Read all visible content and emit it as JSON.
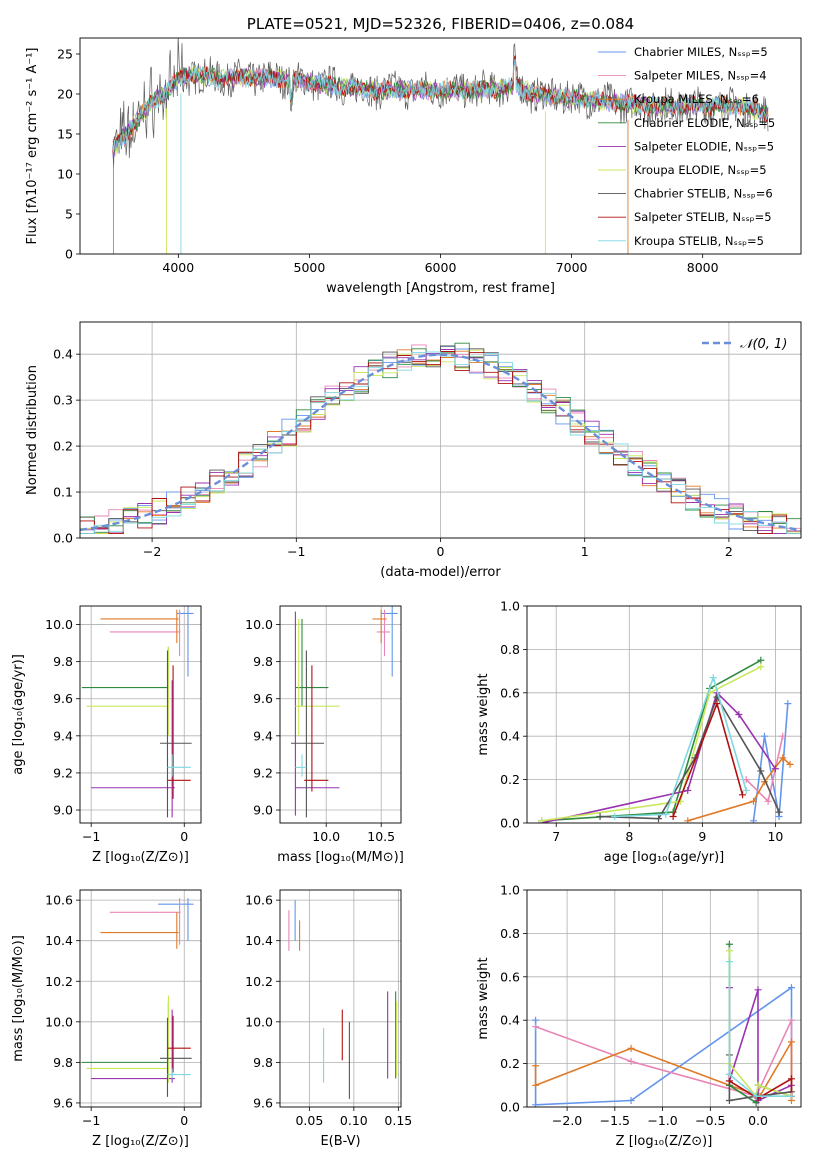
{
  "colors": {
    "chab_miles": "#6495ed",
    "salp_miles": "#e886b6",
    "krou_miles": "#e07b2a",
    "chab_elodie": "#2e8b3e",
    "salp_elodie": "#9933b0",
    "krou_elodie": "#c8e85a",
    "chab_stelib": "#555555",
    "salp_stelib": "#b01010",
    "krou_stelib": "#7fd8e0",
    "normal": "#6a8fd8",
    "grid": "#b0b0b0"
  },
  "chart_data": [
    {
      "id": "spectrum",
      "type": "line",
      "title": "PLATE=0521, MJD=52326, FIBERID=0406, z=0.084",
      "xlabel": "wavelength [Angstrom, rest frame]",
      "ylabel": "Flux [fλ10⁻¹⁷ erg cm⁻² s⁻¹ A⁻¹]",
      "xlim": [
        3250,
        8750
      ],
      "ylim": [
        0,
        27
      ],
      "xticks": [
        "4000",
        "5000",
        "6000",
        "7000",
        "8000"
      ],
      "yticks": [
        "0",
        "5",
        "10",
        "15",
        "20",
        "25"
      ],
      "legend_position": "top-right",
      "legend": [
        {
          "label": "Chabrier MILES, N_SSP=5",
          "color": "chab_miles"
        },
        {
          "label": "Salpeter MILES, N_SSP=4",
          "color": "salp_miles"
        },
        {
          "label": "Kroupa MILES, N_SSP=6",
          "color": "krou_miles"
        },
        {
          "label": "Chabrier ELODIE, N_SSP=5",
          "color": "chab_elodie"
        },
        {
          "label": "Salpeter ELODIE, N_SSP=5",
          "color": "salp_elodie"
        },
        {
          "label": "Kroupa ELODIE, N_SSP=5",
          "color": "krou_elodie"
        },
        {
          "label": "Chabrier STELIB, N_SSP=6",
          "color": "chab_stelib"
        },
        {
          "label": "Salpeter STELIB, N_SSP=5",
          "color": "salp_stelib"
        },
        {
          "label": "Kroupa STELIB, N_SSP=5",
          "color": "krou_stelib"
        }
      ],
      "continuum": [
        [
          3500,
          13
        ],
        [
          3600,
          15
        ],
        [
          3700,
          17
        ],
        [
          3800,
          19
        ],
        [
          3900,
          20
        ],
        [
          4000,
          22
        ],
        [
          4100,
          22.5
        ],
        [
          4300,
          22
        ],
        [
          4500,
          22
        ],
        [
          4700,
          22
        ],
        [
          5000,
          21.5
        ],
        [
          5200,
          21
        ],
        [
          5500,
          20.5
        ],
        [
          6000,
          20.5
        ],
        [
          6300,
          20.5
        ],
        [
          6600,
          21
        ],
        [
          6700,
          20
        ],
        [
          7000,
          19.5
        ],
        [
          7300,
          19
        ],
        [
          7600,
          18.5
        ],
        [
          8000,
          18.5
        ],
        [
          8300,
          18.5
        ],
        [
          8500,
          17.5
        ]
      ]
    },
    {
      "id": "residuals",
      "type": "line",
      "xlabel": "(data-model)/error",
      "ylabel": "Normed distribution",
      "xlim": [
        -2.5,
        2.5
      ],
      "ylim": [
        0,
        0.47
      ],
      "xticks": [
        "−2",
        "−1",
        "0",
        "1",
        "2"
      ],
      "yticks": [
        "0.0",
        "0.1",
        "0.2",
        "0.3",
        "0.4"
      ],
      "legend_position": "top-right",
      "legend": [
        {
          "label": "𝒩(0, 1)",
          "color": "normal"
        }
      ],
      "normal_mean": 0,
      "normal_sigma": 1
    },
    {
      "id": "age_vs_Z",
      "type": "scatter",
      "xlabel": "Z [log₁₀(Z/Z⊙)]",
      "ylabel": "age  [log₁₀(age/yr)]",
      "xlim": [
        -1.12,
        0.18
      ],
      "ylim": [
        8.93,
        10.1
      ],
      "xticks": [
        "−1",
        "0"
      ],
      "yticks": [
        "9.0",
        "9.2",
        "9.4",
        "9.6",
        "9.8",
        "10.0"
      ],
      "points": [
        {
          "x": 0.04,
          "y": 10.06,
          "xlo": -0.08,
          "xhi": 0.1,
          "ylo": 9.72,
          "yhi": 10.1,
          "c": "chab_miles"
        },
        {
          "x": -0.05,
          "y": 9.96,
          "xlo": -0.8,
          "xhi": -0.04,
          "ylo": 9.83,
          "yhi": 10.08,
          "c": "salp_miles"
        },
        {
          "x": -0.08,
          "y": 10.03,
          "xlo": -0.9,
          "xhi": -0.06,
          "ylo": 9.9,
          "yhi": 10.08,
          "c": "krou_miles"
        },
        {
          "x": -0.17,
          "y": 9.66,
          "xlo": -1.1,
          "xhi": -0.17,
          "ylo": 9.56,
          "yhi": 9.88,
          "c": "chab_elodie"
        },
        {
          "x": -0.13,
          "y": 9.12,
          "xlo": -1.0,
          "xhi": -0.1,
          "ylo": 8.96,
          "yhi": 9.7,
          "c": "salp_elodie"
        },
        {
          "x": -0.17,
          "y": 9.56,
          "xlo": -1.05,
          "xhi": -0.17,
          "ylo": 9.4,
          "yhi": 9.88,
          "c": "krou_elodie"
        },
        {
          "x": -0.18,
          "y": 9.36,
          "xlo": -0.26,
          "xhi": 0.08,
          "ylo": 8.96,
          "yhi": 9.86,
          "c": "chab_stelib"
        },
        {
          "x": -0.12,
          "y": 9.16,
          "xlo": -0.18,
          "xhi": 0.07,
          "ylo": 9.06,
          "yhi": 9.78,
          "c": "salp_stelib"
        },
        {
          "x": -0.13,
          "y": 9.23,
          "xlo": -0.18,
          "xhi": 0.07,
          "ylo": 9.18,
          "yhi": 9.3,
          "c": "krou_stelib"
        }
      ]
    },
    {
      "id": "age_vs_mass",
      "type": "scatter",
      "xlabel": "mass [log₁₀(M/M⊙)]",
      "ylabel": "",
      "xlim": [
        9.58,
        10.68
      ],
      "ylim": [
        8.93,
        10.1
      ],
      "xticks": [
        "10.0",
        "10.5"
      ],
      "yticks": [
        "9.0",
        "9.2",
        "9.4",
        "9.6",
        "9.8",
        "10.0"
      ],
      "points": [
        {
          "x": 10.6,
          "y": 10.06,
          "xlo": 10.5,
          "xhi": 10.65,
          "ylo": 9.72,
          "yhi": 10.1,
          "c": "chab_miles"
        },
        {
          "x": 10.53,
          "y": 9.96,
          "xlo": 10.46,
          "xhi": 10.58,
          "ylo": 9.83,
          "yhi": 10.08,
          "c": "salp_miles"
        },
        {
          "x": 10.5,
          "y": 10.03,
          "xlo": 10.42,
          "xhi": 10.55,
          "ylo": 9.9,
          "yhi": 10.08,
          "c": "krou_miles"
        },
        {
          "x": 9.78,
          "y": 9.66,
          "xlo": 9.72,
          "xhi": 10.02,
          "ylo": 9.56,
          "yhi": 10.03,
          "c": "chab_elodie"
        },
        {
          "x": 9.72,
          "y": 9.12,
          "xlo": 9.72,
          "xhi": 10.12,
          "ylo": 8.97,
          "yhi": 10.07,
          "c": "salp_elodie"
        },
        {
          "x": 9.75,
          "y": 9.56,
          "xlo": 9.72,
          "xhi": 10.12,
          "ylo": 9.4,
          "yhi": 10.03,
          "c": "krou_elodie"
        },
        {
          "x": 9.82,
          "y": 9.36,
          "xlo": 9.68,
          "xhi": 9.98,
          "ylo": 8.96,
          "yhi": 9.86,
          "c": "chab_stelib"
        },
        {
          "x": 9.87,
          "y": 9.16,
          "xlo": 9.8,
          "xhi": 10.02,
          "ylo": 9.1,
          "yhi": 9.78,
          "c": "salp_stelib"
        },
        {
          "x": 9.78,
          "y": 9.23,
          "xlo": 9.72,
          "xhi": 9.82,
          "ylo": 9.18,
          "yhi": 9.3,
          "c": "krou_stelib"
        }
      ]
    },
    {
      "id": "weight_vs_age",
      "type": "line",
      "xlabel": "age  [log₁₀(age/yr)]",
      "ylabel": "mass weight",
      "xlim": [
        6.6,
        10.35
      ],
      "ylim": [
        0,
        1
      ],
      "xticks": [
        "7",
        "8",
        "9",
        "10"
      ],
      "yticks": [
        "0.0",
        "0.2",
        "0.4",
        "0.6",
        "0.8",
        "1.0"
      ],
      "series": [
        {
          "c": "chab_miles",
          "x": [
            9.7,
            9.85,
            10.05,
            10.17
          ],
          "y": [
            0.01,
            0.4,
            0.03,
            0.55
          ]
        },
        {
          "c": "salp_miles",
          "x": [
            9.6,
            9.9,
            10.1
          ],
          "y": [
            0.2,
            0.1,
            0.4
          ]
        },
        {
          "c": "krou_miles",
          "x": [
            8.8,
            9.7,
            9.85,
            10.1,
            10.2
          ],
          "y": [
            0.01,
            0.1,
            0.19,
            0.3,
            0.27
          ]
        },
        {
          "c": "chab_elodie",
          "x": [
            6.8,
            8.6,
            9.1,
            9.8
          ],
          "y": [
            0.01,
            0.05,
            0.62,
            0.75
          ]
        },
        {
          "c": "salp_elodie",
          "x": [
            6.8,
            8.8,
            9.2,
            9.5,
            10.0
          ],
          "y": [
            0.0,
            0.15,
            0.6,
            0.5,
            0.25
          ]
        },
        {
          "c": "krou_elodie",
          "x": [
            6.8,
            8.7,
            9.1,
            9.8
          ],
          "y": [
            0.01,
            0.1,
            0.6,
            0.72
          ]
        },
        {
          "c": "chab_stelib",
          "x": [
            7.6,
            8.4,
            8.9,
            9.2,
            9.8,
            10.05
          ],
          "y": [
            0.03,
            0.02,
            0.3,
            0.58,
            0.24,
            0.05
          ]
        },
        {
          "c": "salp_stelib",
          "x": [
            8.6,
            9.2,
            9.55
          ],
          "y": [
            0.03,
            0.55,
            0.13
          ]
        },
        {
          "c": "krou_stelib",
          "x": [
            7.8,
            8.5,
            9.15,
            9.6
          ],
          "y": [
            0.03,
            0.04,
            0.67,
            0.15
          ]
        }
      ]
    },
    {
      "id": "mass_vs_Z",
      "type": "scatter",
      "xlabel": "Z [log₁₀(Z/Z⊙)]",
      "ylabel": "mass [log₁₀(M/M⊙)]",
      "xlim": [
        -1.12,
        0.18
      ],
      "ylim": [
        9.58,
        10.65
      ],
      "xticks": [
        "−1",
        "0"
      ],
      "yticks": [
        "9.6",
        "9.8",
        "10.0",
        "10.2",
        "10.4",
        "10.6"
      ],
      "points": [
        {
          "x": 0.04,
          "y": 10.58,
          "xlo": -0.28,
          "xhi": 0.1,
          "ylo": 10.4,
          "yhi": 10.61,
          "c": "chab_miles"
        },
        {
          "x": -0.05,
          "y": 10.54,
          "xlo": -0.8,
          "xhi": -0.04,
          "ylo": 10.38,
          "yhi": 10.61,
          "c": "salp_miles"
        },
        {
          "x": -0.08,
          "y": 10.44,
          "xlo": -0.9,
          "xhi": -0.06,
          "ylo": 10.36,
          "yhi": 10.54,
          "c": "krou_miles"
        },
        {
          "x": -0.17,
          "y": 9.8,
          "xlo": -1.1,
          "xhi": -0.17,
          "ylo": 9.72,
          "yhi": 10.1,
          "c": "chab_elodie"
        },
        {
          "x": -0.13,
          "y": 9.72,
          "xlo": -1.0,
          "xhi": -0.1,
          "ylo": 9.7,
          "yhi": 10.06,
          "c": "salp_elodie"
        },
        {
          "x": -0.17,
          "y": 9.77,
          "xlo": -1.05,
          "xhi": -0.17,
          "ylo": 9.7,
          "yhi": 10.13,
          "c": "krou_elodie"
        },
        {
          "x": -0.18,
          "y": 9.82,
          "xlo": -0.26,
          "xhi": 0.08,
          "ylo": 9.63,
          "yhi": 10.02,
          "c": "chab_stelib"
        },
        {
          "x": -0.12,
          "y": 9.87,
          "xlo": -0.18,
          "xhi": 0.07,
          "ylo": 9.75,
          "yhi": 10.03,
          "c": "salp_stelib"
        },
        {
          "x": -0.13,
          "y": 9.74,
          "xlo": -0.18,
          "xhi": 0.07,
          "ylo": 9.72,
          "yhi": 9.77,
          "c": "krou_stelib"
        }
      ]
    },
    {
      "id": "mass_vs_ebv",
      "type": "scatter",
      "xlabel": "E(B-V)",
      "ylabel": "",
      "xlim": [
        0.017,
        0.153
      ],
      "ylim": [
        9.58,
        10.65
      ],
      "xticks": [
        "0.05",
        "0.10",
        "0.15"
      ],
      "yticks": [
        "9.6",
        "9.8",
        "10.0",
        "10.2",
        "10.4",
        "10.6"
      ],
      "points": [
        {
          "x": 0.034,
          "y": 10.5,
          "ylo": 10.4,
          "yhi": 10.6,
          "c": "chab_miles"
        },
        {
          "x": 0.027,
          "y": 10.45,
          "ylo": 10.35,
          "yhi": 10.55,
          "c": "salp_miles"
        },
        {
          "x": 0.039,
          "y": 10.42,
          "ylo": 10.35,
          "yhi": 10.5,
          "c": "krou_miles"
        },
        {
          "x": 0.147,
          "y": 9.93,
          "ylo": 9.72,
          "yhi": 10.15,
          "c": "chab_elodie"
        },
        {
          "x": 0.138,
          "y": 9.93,
          "ylo": 9.72,
          "yhi": 10.15,
          "c": "salp_elodie"
        },
        {
          "x": 0.148,
          "y": 9.92,
          "ylo": 9.73,
          "yhi": 10.1,
          "c": "krou_elodie"
        },
        {
          "x": 0.095,
          "y": 9.82,
          "ylo": 9.62,
          "yhi": 10.0,
          "c": "chab_stelib"
        },
        {
          "x": 0.087,
          "y": 9.93,
          "ylo": 9.81,
          "yhi": 10.06,
          "c": "salp_stelib"
        },
        {
          "x": 0.066,
          "y": 9.83,
          "ylo": 9.7,
          "yhi": 9.97,
          "c": "krou_stelib"
        }
      ]
    },
    {
      "id": "weight_vs_Z",
      "type": "line",
      "xlabel": "Z [log₁₀(Z/Z⊙)]",
      "ylabel": "mass weight",
      "xlim": [
        -2.42,
        0.45
      ],
      "ylim": [
        0,
        1
      ],
      "xticks": [
        "−2.0",
        "−1.5",
        "−1.0",
        "−0.5",
        "0.0"
      ],
      "yticks": [
        "0.0",
        "0.2",
        "0.4",
        "0.6",
        "0.8",
        "1.0"
      ],
      "series": [
        {
          "c": "chab_miles",
          "x": [
            -2.33,
            -2.33,
            -1.33,
            0.35,
            0.35
          ],
          "y": [
            0.4,
            0.01,
            0.03,
            0.55,
            0.05
          ]
        },
        {
          "c": "salp_miles",
          "x": [
            -2.33,
            -1.33,
            -0.02,
            0.35,
            0.35
          ],
          "y": [
            0.37,
            0.21,
            0.05,
            0.4,
            0.05
          ]
        },
        {
          "c": "krou_miles",
          "x": [
            -2.33,
            -2.33,
            -1.33,
            -0.3,
            0.02,
            0.35,
            0.35
          ],
          "y": [
            0.19,
            0.1,
            0.27,
            0.1,
            0.05,
            0.3,
            0.03
          ]
        },
        {
          "c": "chab_elodie",
          "x": [
            -0.3,
            -0.3,
            -0.02,
            0.0,
            0.35
          ],
          "y": [
            0.75,
            0.1,
            0.02,
            0.1,
            0.05
          ]
        },
        {
          "c": "salp_elodie",
          "x": [
            -0.3,
            -0.3,
            0.0,
            0.0,
            0.35
          ],
          "y": [
            0.55,
            0.12,
            0.54,
            0.03,
            0.1
          ]
        },
        {
          "c": "krou_elodie",
          "x": [
            -0.3,
            -0.3,
            -0.02,
            0.0,
            0.35
          ],
          "y": [
            0.72,
            0.2,
            0.05,
            0.1,
            0.05
          ]
        },
        {
          "c": "chab_stelib",
          "x": [
            -0.3,
            -0.3,
            -0.02,
            0.0,
            0.35
          ],
          "y": [
            0.24,
            0.03,
            0.05,
            0.05,
            0.07
          ]
        },
        {
          "c": "salp_stelib",
          "x": [
            -0.3,
            -0.3,
            0.0,
            0.35,
            0.35
          ],
          "y": [
            0.15,
            0.12,
            0.04,
            0.13,
            0.05
          ]
        },
        {
          "c": "krou_stelib",
          "x": [
            -0.3,
            -0.3,
            -0.02,
            0.35
          ],
          "y": [
            0.67,
            0.15,
            0.05,
            0.05
          ]
        }
      ]
    }
  ]
}
